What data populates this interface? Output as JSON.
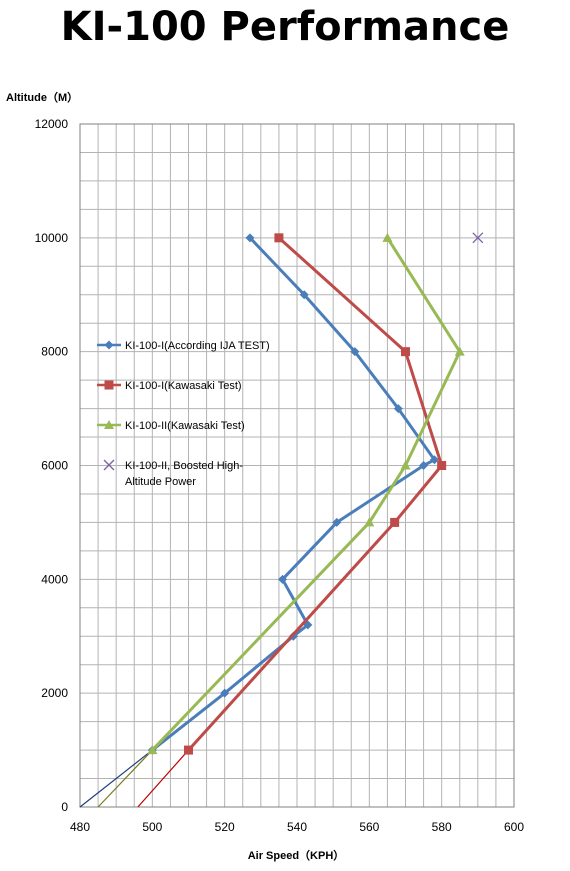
{
  "chart_data": {
    "type": "line",
    "title": "KI-100 Performance",
    "xlabel": "Air Speed（KPH）",
    "ylabel": "Altitude（M）",
    "xlim": [
      480,
      600
    ],
    "ylim": [
      0,
      12000
    ],
    "x_ticks": [
      480,
      500,
      520,
      540,
      560,
      580,
      600
    ],
    "y_ticks": [
      0,
      2000,
      4000,
      6000,
      8000,
      10000,
      12000
    ],
    "grid": true,
    "legend_position": "left",
    "series": [
      {
        "name": "KI-100-I(According IJA TEST)",
        "color": "#4a7ebb",
        "marker": "diamond",
        "points": [
          [
            500,
            1000
          ],
          [
            520,
            2000
          ],
          [
            539,
            3000
          ],
          [
            543,
            3200
          ],
          [
            536,
            4000
          ],
          [
            551,
            5000
          ],
          [
            575,
            6000
          ],
          [
            578,
            6100
          ],
          [
            568,
            7000
          ],
          [
            556,
            8000
          ],
          [
            542,
            9000
          ],
          [
            527,
            10000
          ]
        ]
      },
      {
        "name": "KI-100-I(Kawasaki Test)",
        "color": "#be4b48",
        "marker": "square",
        "points": [
          [
            510,
            1000
          ],
          [
            567,
            5000
          ],
          [
            580,
            6000
          ],
          [
            570,
            8000
          ],
          [
            535,
            10000
          ]
        ]
      },
      {
        "name": "KI-100-II(Kawasaki Test)",
        "color": "#98b954",
        "marker": "triangle",
        "points": [
          [
            500,
            1000
          ],
          [
            560,
            5000
          ],
          [
            570,
            6000
          ],
          [
            585,
            8000
          ],
          [
            565,
            10000
          ]
        ]
      },
      {
        "name": "KI-100-II, Boosted High-Altitude Power",
        "color": "#7d60a0",
        "marker": "x",
        "points": [
          [
            590,
            10000
          ]
        ]
      }
    ],
    "extrapolation_lines": [
      {
        "color": "#1f3f7a",
        "from": [
          480,
          0
        ],
        "to": [
          500,
          1000
        ]
      },
      {
        "color": "#7a7a1f",
        "from": [
          485,
          0
        ],
        "to": [
          500,
          1000
        ]
      },
      {
        "color": "#c00000",
        "from": [
          496,
          0
        ],
        "to": [
          510,
          1000
        ]
      }
    ]
  }
}
